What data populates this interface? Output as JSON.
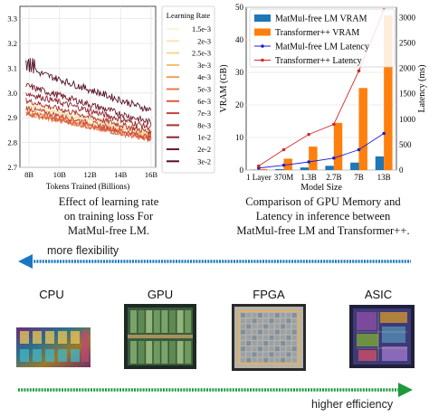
{
  "colors": {
    "vram_matmul": "#1f77b4",
    "vram_transformer": "#ff7f0e",
    "latency_matmul": "#1f1fd0",
    "latency_transformer": "#d62728",
    "arrow_blue": "#1a78c2",
    "arrow_green": "#1e9a3c"
  },
  "chart_data": [
    {
      "type": "line",
      "xlabel": "Tokens Trained (Billions)",
      "x_ticks": [
        "8B",
        "10B",
        "12B",
        "14B",
        "16B"
      ],
      "y_ticks": [
        "2.7",
        "2.8",
        "2.9",
        "3.0",
        "3.1",
        "3.2",
        "3.3"
      ],
      "xlim": [
        7.4,
        16.3
      ],
      "ylim": [
        2.7,
        3.35
      ],
      "grid": true,
      "legend_title": "Learning Rate",
      "legend_position": "right",
      "series": [
        {
          "name": "1.5e-3",
          "color": "#fdf5d6",
          "start": 2.96,
          "end": 2.86
        },
        {
          "name": "2e-3",
          "color": "#fbe7b5",
          "start": 2.95,
          "end": 2.85
        },
        {
          "name": "2.5e-3",
          "color": "#f9d68f",
          "start": 2.945,
          "end": 2.84
        },
        {
          "name": "3e-3",
          "color": "#f6bd6e",
          "start": 2.93,
          "end": 2.83
        },
        {
          "name": "4e-3",
          "color": "#f29e57",
          "start": 2.92,
          "end": 2.82
        },
        {
          "name": "5e-3",
          "color": "#e97c48",
          "start": 2.915,
          "end": 2.815
        },
        {
          "name": "6e-3",
          "color": "#d95d40",
          "start": 2.92,
          "end": 2.81
        },
        {
          "name": "7e-3",
          "color": "#c4443a",
          "start": 2.94,
          "end": 2.82
        },
        {
          "name": "8e-3",
          "color": "#aa3134",
          "start": 2.97,
          "end": 2.84
        },
        {
          "name": "1e-2",
          "color": "#8e2330",
          "start": 3.0,
          "end": 2.86
        },
        {
          "name": "2e-2",
          "color": "#70192c",
          "start": 3.03,
          "end": 2.88
        },
        {
          "name": "3e-2",
          "color": "#531127",
          "start": 3.1,
          "end": 2.93
        }
      ]
    },
    {
      "type": "bar",
      "xlabel": "Model Size",
      "ylabel": "VRAM (GB)",
      "ylabel_right": "Latency (ms)",
      "categories": [
        "1 Layer",
        "370M",
        "1.3B",
        "2.7B",
        "7B",
        "13B"
      ],
      "ylim": [
        0,
        50
      ],
      "y_ticks": [
        0,
        10,
        20,
        30,
        40,
        50
      ],
      "ylim_right": [
        0,
        3200
      ],
      "y_ticks_right": [
        0,
        500,
        1000,
        1500,
        2000,
        2500,
        3000
      ],
      "legend_position": "top-right",
      "grid": true,
      "series": [
        {
          "name": "MatMul-free LM VRAM",
          "kind": "bar",
          "axis": "left",
          "values": [
            0.1,
            0.3,
            0.8,
            1.3,
            2.3,
            4.2
          ]
        },
        {
          "name": "Transformer++ VRAM",
          "kind": "bar",
          "axis": "left",
          "values": [
            0.3,
            3.5,
            7.2,
            14.5,
            25.2,
            47.5
          ]
        },
        {
          "name": "MatMul-free LM Latency",
          "kind": "line",
          "axis": "right",
          "values": [
            40,
            95,
            160,
            235,
            400,
            720
          ]
        },
        {
          "name": "Transformer++ Latency",
          "kind": "line",
          "axis": "right",
          "values": [
            80,
            400,
            700,
            900,
            1950,
            3150
          ]
        }
      ]
    }
  ],
  "captions": {
    "left": [
      "Effect of learning rate",
      "on training loss For",
      "MatMul-free LM."
    ],
    "right": [
      "Comparison of GPU Memory and",
      "Latency in inference between",
      "MatMul-free LM and Transformer++."
    ]
  },
  "arrows": {
    "top_label": "more flexibility",
    "bottom_label": "higher efficiency"
  },
  "hardware": [
    {
      "label": "CPU",
      "icon": "cpu-die-icon"
    },
    {
      "label": "GPU",
      "icon": "gpu-die-icon"
    },
    {
      "label": "FPGA",
      "icon": "fpga-die-icon"
    },
    {
      "label": "ASIC",
      "icon": "asic-die-icon"
    }
  ]
}
